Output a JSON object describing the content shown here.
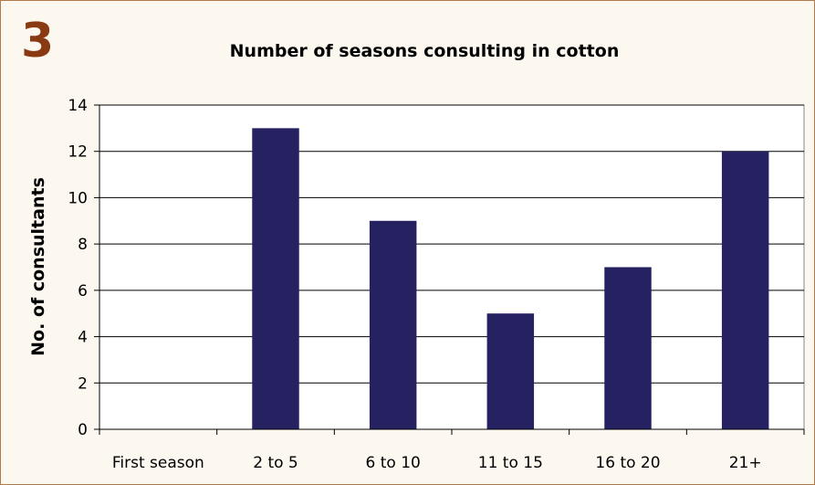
{
  "figure_number": "3",
  "colors": {
    "bar": "#262262",
    "plot_background": "#ffffff",
    "frame_border": "#b3794a",
    "figure_number": "#8a3a12"
  },
  "chart_data": {
    "type": "bar",
    "title": "Number of seasons consulting in cotton",
    "xlabel": "",
    "ylabel": "No. of consultants",
    "categories": [
      "First season",
      "2 to 5",
      "6 to 10",
      "11 to 15",
      "16 to 20",
      "21+"
    ],
    "values": [
      0,
      13,
      9,
      5,
      7,
      12
    ],
    "ylim": [
      0,
      14
    ],
    "yticks": [
      0,
      2,
      4,
      6,
      8,
      10,
      12,
      14
    ],
    "grid": true,
    "legend": "none"
  }
}
